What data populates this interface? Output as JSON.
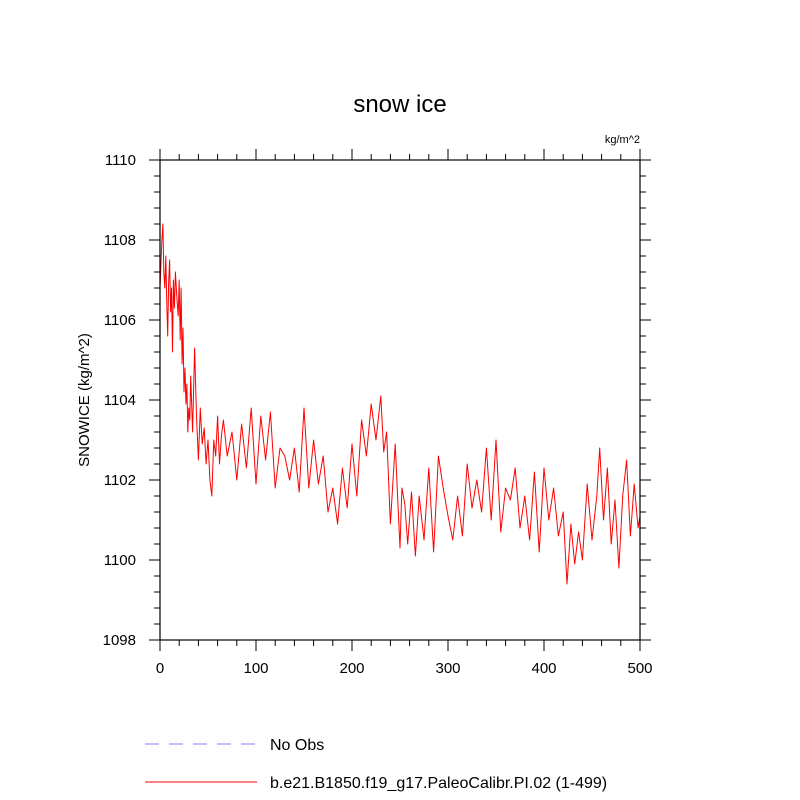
{
  "chart_data": {
    "type": "line",
    "title": "snow ice",
    "units_label": "kg/m^2",
    "ylabel": "SNOWICE  (kg/m^2)",
    "xlabel": "",
    "xlim": [
      0,
      500
    ],
    "ylim": [
      1098,
      1110
    ],
    "xticks": [
      0,
      100,
      200,
      300,
      400,
      500
    ],
    "yticks": [
      1098,
      1100,
      1102,
      1104,
      1106,
      1108,
      1110
    ],
    "xtick_labels": [
      "0",
      "100",
      "200",
      "300",
      "400",
      "500"
    ],
    "ytick_labels": [
      "1098",
      "1100",
      "1102",
      "1104",
      "1106",
      "1108",
      "1110"
    ],
    "legend": [
      {
        "label": "No Obs",
        "color": "#8080ff",
        "style": "dashed"
      },
      {
        "label": "b.e21.B1850.f19_g17.PaleoCalibr.PI.02 (1-499)",
        "color": "#ff0000",
        "style": "solid"
      }
    ],
    "series": [
      {
        "name": "b.e21.B1850.f19_g17.PaleoCalibr.PI.02 (1-499)",
        "color": "#ff0000",
        "x": [
          0,
          2,
          3,
          4,
          5,
          6,
          7,
          8,
          9,
          10,
          11,
          12,
          13,
          14,
          15,
          16,
          17,
          18,
          19,
          20,
          21,
          22,
          23,
          24,
          25,
          26,
          27,
          28,
          29,
          30,
          31,
          32,
          34,
          36,
          38,
          40,
          42,
          44,
          46,
          48,
          50,
          52,
          54,
          56,
          58,
          60,
          62,
          64,
          66,
          70,
          75,
          80,
          85,
          90,
          95,
          100,
          105,
          110,
          115,
          120,
          125,
          130,
          135,
          140,
          145,
          150,
          155,
          160,
          165,
          170,
          175,
          180,
          185,
          190,
          195,
          200,
          205,
          210,
          215,
          220,
          225,
          230,
          233,
          236,
          240,
          245,
          250,
          252,
          255,
          258,
          262,
          266,
          270,
          275,
          280,
          285,
          290,
          295,
          300,
          305,
          310,
          315,
          320,
          325,
          330,
          335,
          340,
          345,
          350,
          355,
          360,
          365,
          370,
          375,
          380,
          385,
          390,
          395,
          400,
          405,
          410,
          415,
          420,
          424,
          428,
          432,
          436,
          440,
          445,
          450,
          455,
          458,
          462,
          466,
          470,
          474,
          478,
          482,
          486,
          490,
          494,
          498,
          500
        ],
        "values": [
          1106.8,
          1108.0,
          1108.4,
          1107.2,
          1106.8,
          1107.6,
          1106.5,
          1105.6,
          1106.9,
          1107.5,
          1106.2,
          1106.8,
          1105.2,
          1107.0,
          1106.3,
          1107.2,
          1106.8,
          1106.4,
          1106.1,
          1107.0,
          1105.5,
          1106.8,
          1104.9,
          1105.8,
          1104.2,
          1104.8,
          1103.9,
          1104.4,
          1103.2,
          1103.8,
          1103.5,
          1104.6,
          1103.2,
          1105.3,
          1103.6,
          1102.5,
          1103.8,
          1102.9,
          1103.3,
          1102.4,
          1103.0,
          1102.0,
          1101.6,
          1103.0,
          1102.6,
          1103.6,
          1102.4,
          1103.1,
          1103.5,
          1102.6,
          1103.2,
          1102.0,
          1103.4,
          1102.3,
          1103.8,
          1101.9,
          1103.6,
          1102.5,
          1103.7,
          1101.8,
          1102.8,
          1102.6,
          1102.0,
          1102.8,
          1101.7,
          1103.8,
          1101.8,
          1103.0,
          1101.9,
          1102.6,
          1101.2,
          1101.8,
          1100.9,
          1102.3,
          1101.3,
          1102.9,
          1101.6,
          1103.5,
          1102.6,
          1103.9,
          1103.0,
          1104.1,
          1102.7,
          1103.2,
          1100.9,
          1102.9,
          1100.3,
          1101.8,
          1101.4,
          1100.4,
          1101.7,
          1100.1,
          1101.6,
          1100.5,
          1102.3,
          1100.2,
          1102.6,
          1101.8,
          1101.1,
          1100.5,
          1101.6,
          1100.6,
          1102.4,
          1101.3,
          1102.0,
          1101.2,
          1102.8,
          1101.0,
          1103.0,
          1100.7,
          1101.8,
          1101.5,
          1102.3,
          1100.8,
          1101.6,
          1100.5,
          1102.2,
          1100.2,
          1102.3,
          1101.0,
          1101.8,
          1100.6,
          1101.2,
          1099.4,
          1100.9,
          1099.9,
          1100.7,
          1100.0,
          1101.9,
          1100.5,
          1101.6,
          1102.8,
          1101.0,
          1102.3,
          1100.4,
          1101.5,
          1099.8,
          1101.6,
          1102.5,
          1100.6,
          1101.9,
          1100.8,
          1101.1
        ]
      }
    ]
  }
}
